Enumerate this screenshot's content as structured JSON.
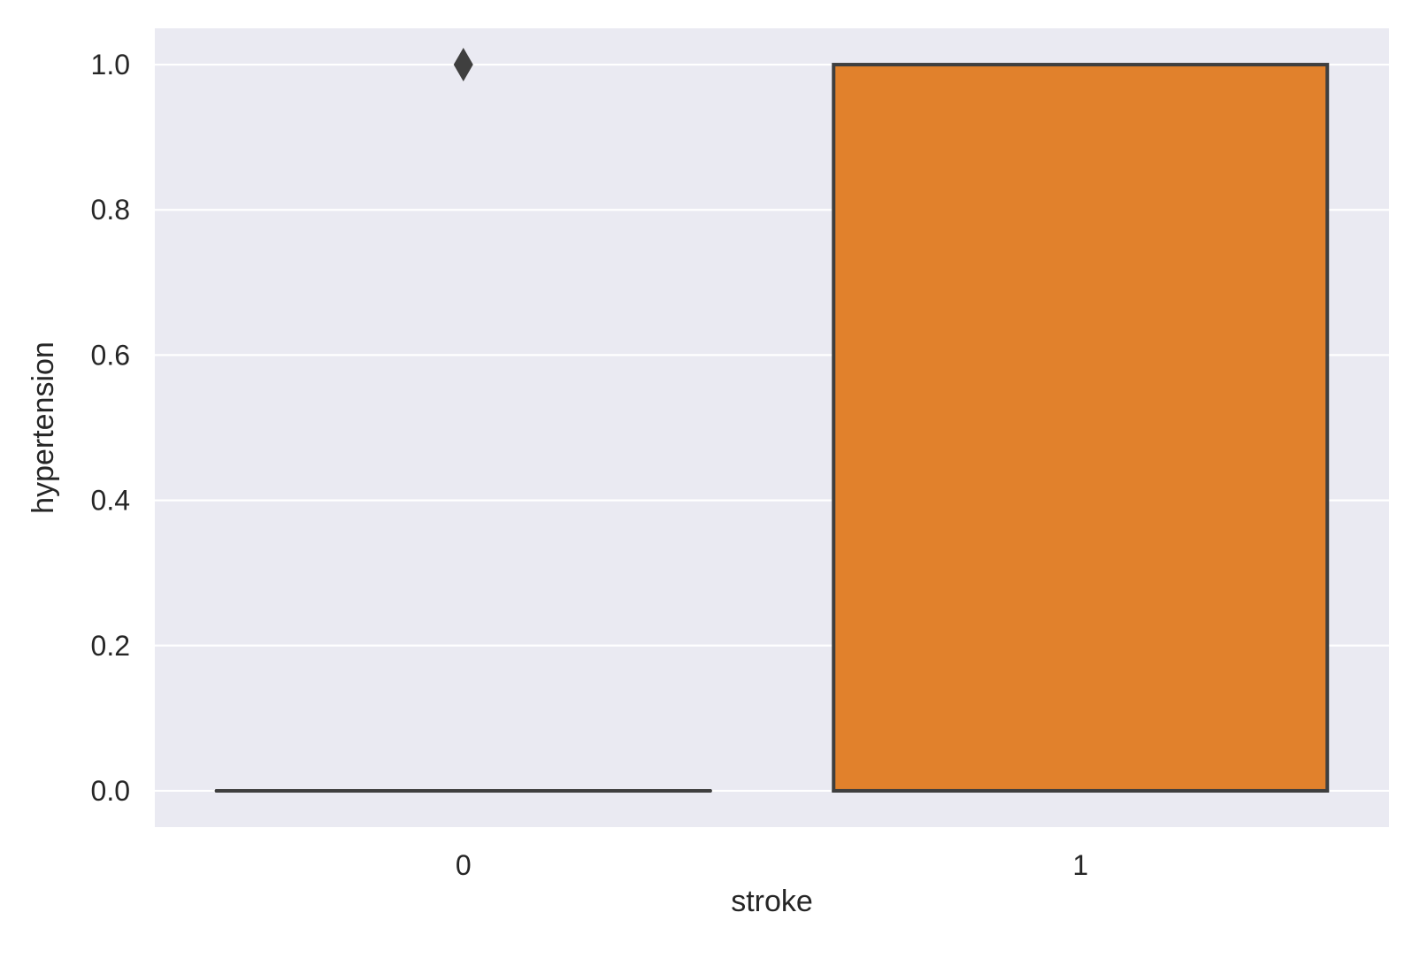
{
  "chart_data": {
    "type": "box",
    "xlabel": "stroke",
    "ylabel": "hypertension",
    "categories": [
      "0",
      "1"
    ],
    "ylim": [
      -0.05,
      1.05
    ],
    "yticks": [
      0.0,
      0.2,
      0.4,
      0.6,
      0.8,
      1.0
    ],
    "ytick_labels": [
      "0.0",
      "0.2",
      "0.4",
      "0.6",
      "0.8",
      "1.0"
    ],
    "grid": true,
    "background_color": "#eaeaf2",
    "boxes": [
      {
        "category": "0",
        "q1": 0.0,
        "median": 0.0,
        "q3": 0.0,
        "whisker_low": 0.0,
        "whisker_high": 0.0,
        "fliers": [
          1.0
        ],
        "color": "#3274a1"
      },
      {
        "category": "1",
        "q1": 0.0,
        "median": 0.0,
        "q3": 1.0,
        "whisker_low": 0.0,
        "whisker_high": 1.0,
        "fliers": [],
        "color": "#e1812c"
      }
    ],
    "edge_color": "#3f3f3f"
  }
}
